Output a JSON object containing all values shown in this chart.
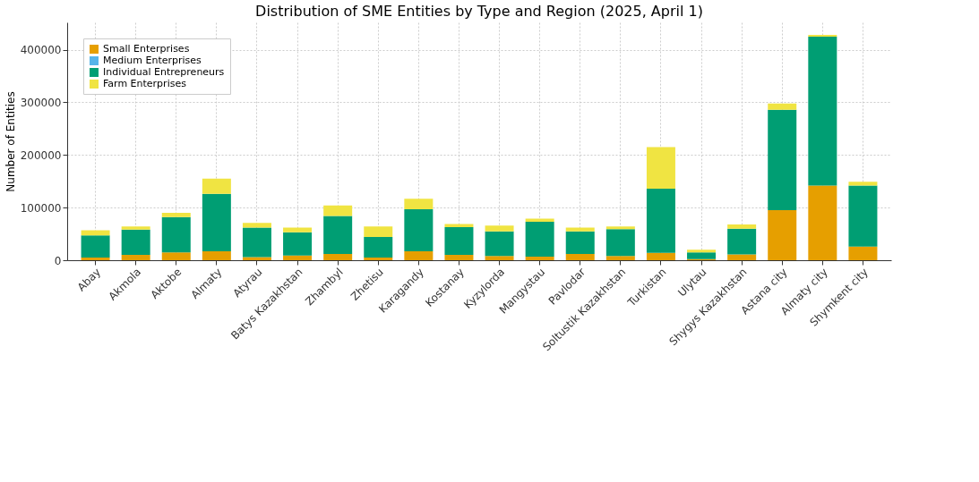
{
  "chart_data": {
    "type": "bar",
    "title": "Distribution of SME Entities by Type and Region (2025, April 1)",
    "ylabel": "Number of Entities",
    "stacked": true,
    "categories": [
      "Abay",
      "Akmola",
      "Aktobe",
      "Almaty",
      "Atyrau",
      "Batys Kazakhstan",
      "Zhambyl",
      "Zhetisu",
      "Karagandy",
      "Kostanay",
      "Kyzylorda",
      "Mangystau",
      "Pavlodar",
      "Soltustik Kazakhstan",
      "Turkistan",
      "Ulytau",
      "Shygys Kazakhstan",
      "Astana city",
      "Almaty city",
      "Shymkent city"
    ],
    "series": [
      {
        "name": "Small Enterprises",
        "color": "#e69f00",
        "values": [
          5000,
          10000,
          15000,
          17000,
          6000,
          9000,
          12000,
          5000,
          17000,
          10000,
          8000,
          7000,
          12000,
          8000,
          14000,
          2000,
          11000,
          95000,
          142000,
          26000
        ]
      },
      {
        "name": "Medium Enterprises",
        "color": "#56b4e9",
        "values": [
          null,
          null,
          null,
          null,
          null,
          null,
          null,
          null,
          null,
          null,
          null,
          null,
          null,
          null,
          null,
          null,
          null,
          null,
          null,
          null
        ]
      },
      {
        "name": "Individual Entrepreneurs",
        "color": "#009e73",
        "values": [
          42000,
          48000,
          67000,
          109000,
          56000,
          44000,
          72000,
          39000,
          80000,
          53000,
          47000,
          66000,
          43000,
          51000,
          122000,
          13000,
          49000,
          191000,
          283000,
          116000
        ]
      },
      {
        "name": "Farm Enterprises",
        "color": "#f0e442",
        "values": [
          10000,
          6000,
          8000,
          29000,
          9000,
          9000,
          20000,
          20000,
          20000,
          6000,
          11000,
          6000,
          7000,
          5000,
          79000,
          5000,
          8000,
          12000,
          3000,
          7000
        ]
      }
    ],
    "ylim": [
      0,
      452000
    ],
    "yticks": [
      0,
      100000,
      200000,
      300000,
      400000
    ],
    "grid": true,
    "legend": "top left"
  }
}
